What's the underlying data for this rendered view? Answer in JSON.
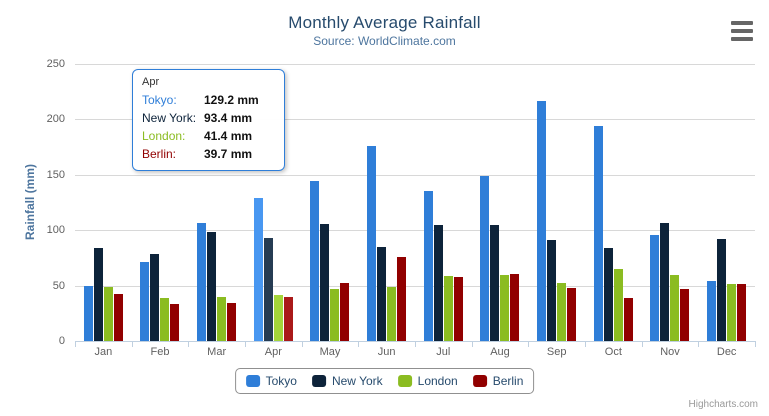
{
  "chart": {
    "title": "Monthly Average Rainfall",
    "subtitle": "Source: WorldClimate.com",
    "y_axis_title": "Rainfall (mm)",
    "credits": "Highcharts.com"
  },
  "chart_data": {
    "type": "bar",
    "title": "Monthly Average Rainfall",
    "subtitle": "Source: WorldClimate.com",
    "xlabel": "",
    "ylabel": "Rainfall (mm)",
    "ylim": [
      0,
      250
    ],
    "yticks": [
      0,
      50,
      100,
      150,
      200,
      250
    ],
    "grid": true,
    "legend_position": "bottom",
    "categories": [
      "Jan",
      "Feb",
      "Mar",
      "Apr",
      "May",
      "Jun",
      "Jul",
      "Aug",
      "Sep",
      "Oct",
      "Nov",
      "Dec"
    ],
    "series": [
      {
        "name": "Tokyo",
        "color": "#2f7ed8",
        "hover_color": "#4897f1",
        "values": [
          49.9,
          71.5,
          106.4,
          129.2,
          144.0,
          176.0,
          135.6,
          148.5,
          216.4,
          194.1,
          95.6,
          54.4
        ]
      },
      {
        "name": "New York",
        "color": "#0d233a",
        "hover_color": "#263c53",
        "values": [
          83.6,
          78.8,
          98.5,
          93.4,
          106.0,
          84.5,
          105.0,
          104.3,
          91.2,
          83.5,
          106.6,
          92.3
        ]
      },
      {
        "name": "London",
        "color": "#8bbc21",
        "hover_color": "#a4d53a",
        "values": [
          48.9,
          38.8,
          39.3,
          41.4,
          47.0,
          48.3,
          59.0,
          59.6,
          52.4,
          65.2,
          59.3,
          51.2
        ]
      },
      {
        "name": "Berlin",
        "color": "#910000",
        "hover_color": "#aa1919",
        "values": [
          42.4,
          33.2,
          34.5,
          39.7,
          52.6,
          75.5,
          57.4,
          60.4,
          47.6,
          39.1,
          46.8,
          51.1
        ]
      }
    ],
    "hovered_category": "Apr"
  },
  "tooltip": {
    "header": "Apr",
    "border_color": "#2f7ed8",
    "rows": [
      {
        "label": "Tokyo:",
        "value": "129.2 mm",
        "color": "#2f7ed8"
      },
      {
        "label": "New York:",
        "value": "93.4 mm",
        "color": "#0d233a"
      },
      {
        "label": "London:",
        "value": "41.4 mm",
        "color": "#8bbc21"
      },
      {
        "label": "Berlin:",
        "value": "39.7 mm",
        "color": "#910000"
      }
    ]
  },
  "legend": {
    "items": [
      {
        "label": "Tokyo",
        "color": "#2f7ed8"
      },
      {
        "label": "New York",
        "color": "#0d233a"
      },
      {
        "label": "London",
        "color": "#8bbc21"
      },
      {
        "label": "Berlin",
        "color": "#910000"
      }
    ]
  }
}
